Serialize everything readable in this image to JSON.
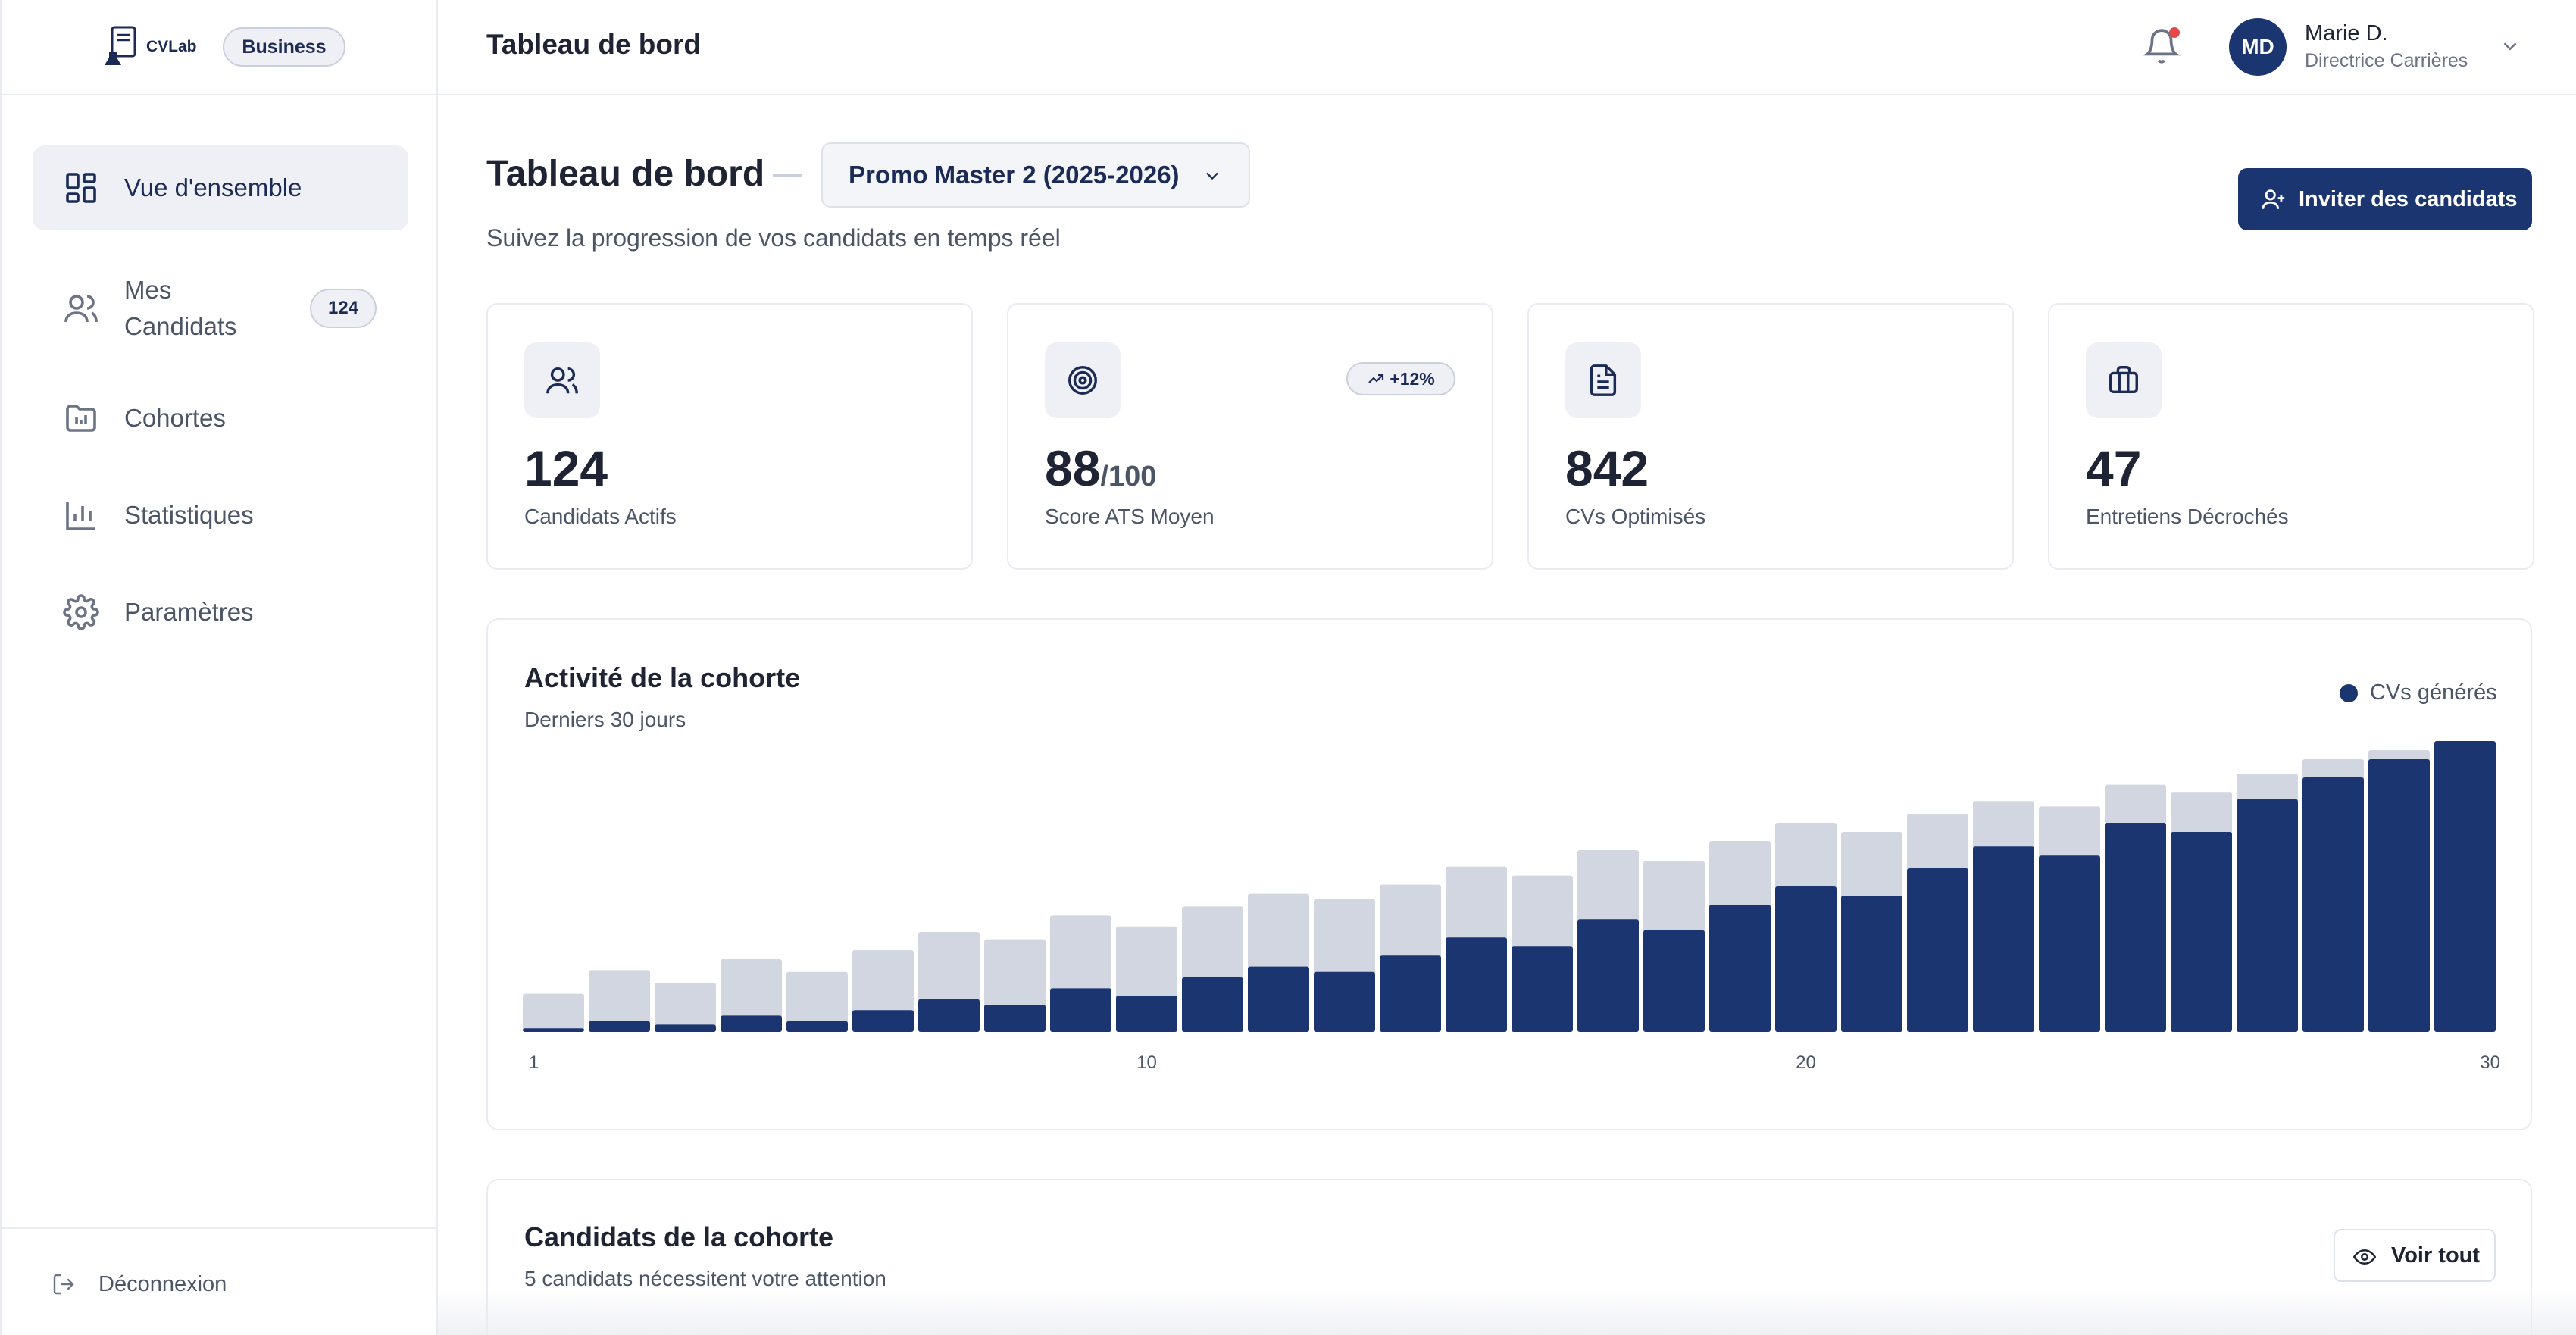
{
  "brand": {
    "name": "CVLab",
    "badge": "Business"
  },
  "sidebar": {
    "items": [
      {
        "label": "Vue d'ensemble",
        "icon": "dashboard-icon",
        "active": true
      },
      {
        "label": "Mes Candidats",
        "icon": "users-icon",
        "badge": "124"
      },
      {
        "label": "Cohortes",
        "icon": "folder-icon"
      },
      {
        "label": "Statistiques",
        "icon": "bar-chart-icon"
      },
      {
        "label": "Paramètres",
        "icon": "gear-icon"
      }
    ],
    "logout": "Déconnexion"
  },
  "header": {
    "title": "Tableau de bord",
    "user": {
      "initials": "MD",
      "name": "Marie D.",
      "role": "Directrice Carrières"
    }
  },
  "main": {
    "title": "Tableau de bord",
    "promo": "Promo Master 2 (2025-2026)",
    "subtitle": "Suivez la progression de vos candidats en temps réel",
    "invite_label": "Inviter des candidats",
    "kpis": [
      {
        "value": "124",
        "suffix": "",
        "label": "Candidats Actifs",
        "icon": "users-icon"
      },
      {
        "value": "88",
        "suffix": "/100",
        "label": "Score ATS Moyen",
        "icon": "target-icon",
        "trend": "+12%"
      },
      {
        "value": "842",
        "suffix": "",
        "label": "CVs Optimisés",
        "icon": "document-icon"
      },
      {
        "value": "47",
        "suffix": "",
        "label": "Entretiens Décrochés",
        "icon": "briefcase-icon"
      }
    ],
    "activity": {
      "title": "Activité de la cohorte",
      "subtitle": "Derniers 30 jours"
    },
    "candidates": {
      "title": "Candidats de la cohorte",
      "subtitle": "5 candidats nécessitent votre attention",
      "see_all": "Voir tout"
    }
  },
  "colors": {
    "primary": "#1b3571",
    "secondary": "#d1d6e1",
    "alert": "#e54848"
  },
  "chart_data": {
    "type": "bar",
    "legend": [
      "CVs générés"
    ],
    "x": [
      1,
      2,
      3,
      4,
      5,
      6,
      7,
      8,
      9,
      10,
      11,
      12,
      13,
      14,
      15,
      16,
      17,
      18,
      19,
      20,
      21,
      22,
      23,
      24,
      25,
      26,
      27,
      28,
      29,
      30
    ],
    "x_ticks": [
      "1",
      "10",
      "20",
      "30"
    ],
    "series": [
      {
        "name": "CVs générés",
        "values": [
          2,
          6,
          4,
          9,
          6,
          12,
          18,
          15,
          24,
          20,
          30,
          36,
          33,
          42,
          52,
          47,
          62,
          56,
          70,
          80,
          75,
          90,
          102,
          97,
          115,
          110,
          128,
          140,
          150,
          160
        ]
      }
    ],
    "background_values": [
      21,
      34,
      27,
      40,
      33,
      45,
      55,
      51,
      64,
      58,
      69,
      76,
      73,
      81,
      91,
      86,
      100,
      94,
      105,
      115,
      110,
      120,
      127,
      124,
      136,
      132,
      142,
      150,
      155,
      160
    ],
    "legend_position": "top-right",
    "grid": false
  }
}
